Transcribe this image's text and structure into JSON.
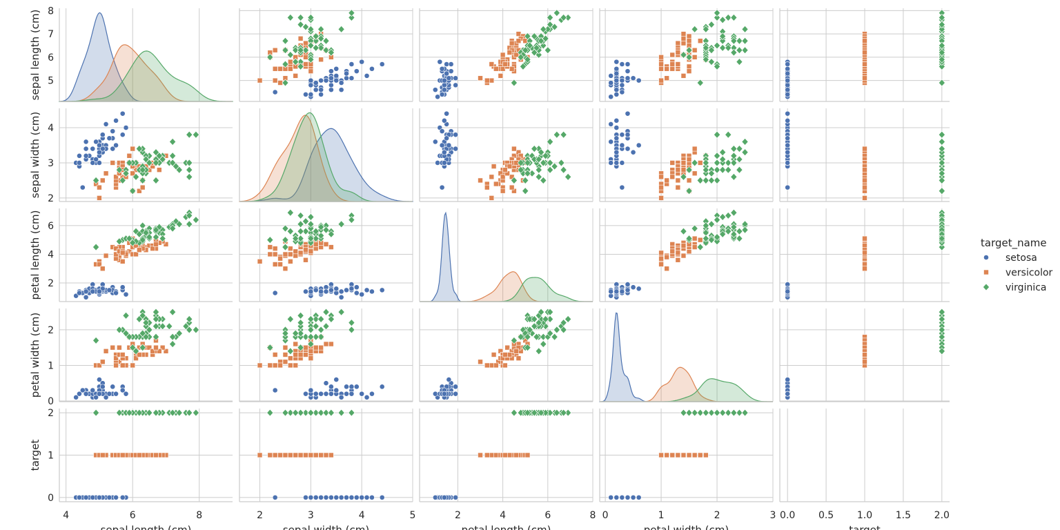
{
  "chart_data": {
    "type": "scatter",
    "title": "",
    "variables": [
      "sepal length (cm)",
      "sepal width (cm)",
      "petal length (cm)",
      "petal width (cm)",
      "target"
    ],
    "axes": {
      "sepal length (cm)": {
        "lim": [
          3.8,
          9.0
        ],
        "ticks": [
          4,
          6,
          8
        ],
        "tick_labels": [
          "4",
          "6",
          "8"
        ],
        "yticks": [
          5,
          6,
          7,
          8
        ],
        "ytick_labels": [
          "5",
          "6",
          "7",
          "8"
        ],
        "ylim": [
          4.1,
          8.1
        ]
      },
      "sepal width (cm)": {
        "lim": [
          1.6,
          5.0
        ],
        "ticks": [
          2,
          3,
          4,
          5
        ],
        "tick_labels": [
          "2",
          "3",
          "4",
          "5"
        ],
        "yticks": [
          2,
          3,
          4
        ],
        "ytick_labels": [
          "2",
          "3",
          "4"
        ],
        "ylim": [
          1.9,
          4.55
        ]
      },
      "petal length (cm)": {
        "lim": [
          0.3,
          8.0
        ],
        "ticks": [
          2,
          4,
          6,
          8
        ],
        "tick_labels": [
          "2",
          "4",
          "6",
          "8"
        ],
        "yticks": [
          2,
          4,
          6
        ],
        "ytick_labels": [
          "2",
          "4",
          "6"
        ],
        "ylim": [
          0.7,
          7.2
        ]
      },
      "petal width (cm)": {
        "lim": [
          -0.1,
          3.0
        ],
        "ticks": [
          0,
          1,
          2,
          3
        ],
        "tick_labels": [
          "0",
          "1",
          "2",
          "3"
        ],
        "yticks": [
          0,
          1,
          2
        ],
        "ytick_labels": [
          "0",
          "1",
          "2"
        ],
        "ylim": [
          -0.02,
          2.6
        ]
      },
      "target": {
        "lim": [
          -0.1,
          2.1
        ],
        "ticks": [
          0,
          0.5,
          1,
          1.5,
          2
        ],
        "tick_labels": [
          "0.0",
          "0.5",
          "1.0",
          "1.5",
          "2.0"
        ],
        "yticks": [
          0,
          1,
          2
        ],
        "ytick_labels": [
          "0",
          "1",
          "2"
        ],
        "ylim": [
          -0.1,
          2.1
        ]
      }
    },
    "legend": {
      "title": "target_name",
      "placement": "right",
      "entries": [
        {
          "label": "setosa",
          "marker": "circle"
        },
        {
          "label": "versicolor",
          "marker": "square"
        },
        {
          "label": "virginica",
          "marker": "diamond"
        }
      ]
    },
    "colors": {
      "setosa": "#4c72b0",
      "versicolor": "#dd8452",
      "virginica": "#55a868"
    },
    "series": [
      {
        "name": "setosa",
        "target": 0,
        "points": [
          [
            5.1,
            3.5,
            1.4,
            0.2
          ],
          [
            4.9,
            3.0,
            1.4,
            0.2
          ],
          [
            4.7,
            3.2,
            1.3,
            0.2
          ],
          [
            4.6,
            3.1,
            1.5,
            0.2
          ],
          [
            5.0,
            3.6,
            1.4,
            0.2
          ],
          [
            5.4,
            3.9,
            1.7,
            0.4
          ],
          [
            4.6,
            3.4,
            1.4,
            0.3
          ],
          [
            5.0,
            3.4,
            1.5,
            0.2
          ],
          [
            4.4,
            2.9,
            1.4,
            0.2
          ],
          [
            4.9,
            3.1,
            1.5,
            0.1
          ],
          [
            5.4,
            3.7,
            1.5,
            0.2
          ],
          [
            4.8,
            3.4,
            1.6,
            0.2
          ],
          [
            4.8,
            3.0,
            1.4,
            0.1
          ],
          [
            4.3,
            3.0,
            1.1,
            0.1
          ],
          [
            5.8,
            4.0,
            1.2,
            0.2
          ],
          [
            5.7,
            4.4,
            1.5,
            0.4
          ],
          [
            5.4,
            3.9,
            1.3,
            0.4
          ],
          [
            5.1,
            3.5,
            1.4,
            0.3
          ],
          [
            5.7,
            3.8,
            1.7,
            0.3
          ],
          [
            5.1,
            3.8,
            1.5,
            0.3
          ],
          [
            5.4,
            3.4,
            1.7,
            0.2
          ],
          [
            5.1,
            3.7,
            1.5,
            0.4
          ],
          [
            4.6,
            3.6,
            1.0,
            0.2
          ],
          [
            5.1,
            3.3,
            1.7,
            0.5
          ],
          [
            4.8,
            3.4,
            1.9,
            0.2
          ],
          [
            5.0,
            3.0,
            1.6,
            0.2
          ],
          [
            5.0,
            3.4,
            1.6,
            0.4
          ],
          [
            5.2,
            3.5,
            1.5,
            0.2
          ],
          [
            5.2,
            3.4,
            1.4,
            0.2
          ],
          [
            4.7,
            3.2,
            1.6,
            0.2
          ],
          [
            4.8,
            3.1,
            1.6,
            0.2
          ],
          [
            5.4,
            3.4,
            1.5,
            0.4
          ],
          [
            5.2,
            4.1,
            1.5,
            0.1
          ],
          [
            5.5,
            4.2,
            1.4,
            0.2
          ],
          [
            4.9,
            3.1,
            1.5,
            0.2
          ],
          [
            5.0,
            3.2,
            1.2,
            0.2
          ],
          [
            5.5,
            3.5,
            1.3,
            0.2
          ],
          [
            4.9,
            3.6,
            1.4,
            0.1
          ],
          [
            4.4,
            3.0,
            1.3,
            0.2
          ],
          [
            5.1,
            3.4,
            1.5,
            0.2
          ],
          [
            5.0,
            3.5,
            1.3,
            0.3
          ],
          [
            4.5,
            2.3,
            1.3,
            0.3
          ],
          [
            4.4,
            3.2,
            1.3,
            0.2
          ],
          [
            5.0,
            3.5,
            1.6,
            0.6
          ],
          [
            5.1,
            3.8,
            1.9,
            0.4
          ],
          [
            4.8,
            3.0,
            1.4,
            0.3
          ],
          [
            5.1,
            3.8,
            1.6,
            0.2
          ],
          [
            4.6,
            3.2,
            1.4,
            0.2
          ],
          [
            5.3,
            3.7,
            1.5,
            0.2
          ],
          [
            5.0,
            3.3,
            1.4,
            0.2
          ]
        ]
      },
      {
        "name": "versicolor",
        "target": 1,
        "points": [
          [
            7.0,
            3.2,
            4.7,
            1.4
          ],
          [
            6.4,
            3.2,
            4.5,
            1.5
          ],
          [
            6.9,
            3.1,
            4.9,
            1.5
          ],
          [
            5.5,
            2.3,
            4.0,
            1.3
          ],
          [
            6.5,
            2.8,
            4.6,
            1.5
          ],
          [
            5.7,
            2.8,
            4.5,
            1.3
          ],
          [
            6.3,
            3.3,
            4.7,
            1.6
          ],
          [
            4.9,
            2.4,
            3.3,
            1.0
          ],
          [
            6.6,
            2.9,
            4.6,
            1.3
          ],
          [
            5.2,
            2.7,
            3.9,
            1.4
          ],
          [
            5.0,
            2.0,
            3.5,
            1.0
          ],
          [
            5.9,
            3.0,
            4.2,
            1.5
          ],
          [
            6.0,
            2.2,
            4.0,
            1.0
          ],
          [
            6.1,
            2.9,
            4.7,
            1.4
          ],
          [
            5.6,
            2.9,
            3.6,
            1.3
          ],
          [
            6.7,
            3.1,
            4.4,
            1.4
          ],
          [
            5.6,
            3.0,
            4.5,
            1.5
          ],
          [
            5.8,
            2.7,
            4.1,
            1.0
          ],
          [
            6.2,
            2.2,
            4.5,
            1.5
          ],
          [
            5.6,
            2.5,
            3.9,
            1.1
          ],
          [
            5.9,
            3.2,
            4.8,
            1.8
          ],
          [
            6.1,
            2.8,
            4.0,
            1.3
          ],
          [
            6.3,
            2.5,
            4.9,
            1.5
          ],
          [
            6.1,
            2.8,
            4.7,
            1.2
          ],
          [
            6.4,
            2.9,
            4.3,
            1.3
          ],
          [
            6.6,
            3.0,
            4.4,
            1.4
          ],
          [
            6.8,
            2.8,
            4.8,
            1.4
          ],
          [
            6.7,
            3.0,
            5.0,
            1.7
          ],
          [
            6.0,
            2.9,
            4.5,
            1.5
          ],
          [
            5.7,
            2.6,
            3.5,
            1.0
          ],
          [
            5.5,
            2.4,
            3.8,
            1.1
          ],
          [
            5.5,
            2.4,
            3.7,
            1.0
          ],
          [
            5.8,
            2.7,
            3.9,
            1.2
          ],
          [
            6.0,
            2.7,
            5.1,
            1.6
          ],
          [
            5.4,
            3.0,
            4.5,
            1.5
          ],
          [
            6.0,
            3.4,
            4.5,
            1.6
          ],
          [
            6.7,
            3.1,
            4.7,
            1.5
          ],
          [
            6.3,
            2.3,
            4.4,
            1.3
          ],
          [
            5.6,
            3.0,
            4.1,
            1.3
          ],
          [
            5.5,
            2.5,
            4.0,
            1.3
          ],
          [
            5.5,
            2.6,
            4.4,
            1.2
          ],
          [
            6.1,
            3.0,
            4.6,
            1.4
          ],
          [
            5.8,
            2.6,
            4.0,
            1.2
          ],
          [
            5.0,
            2.3,
            3.3,
            1.0
          ],
          [
            5.6,
            2.7,
            4.2,
            1.3
          ],
          [
            5.7,
            3.0,
            4.2,
            1.2
          ],
          [
            5.7,
            2.9,
            4.2,
            1.3
          ],
          [
            6.2,
            2.9,
            4.3,
            1.3
          ],
          [
            5.1,
            2.5,
            3.0,
            1.1
          ],
          [
            5.7,
            2.8,
            4.1,
            1.3
          ]
        ]
      },
      {
        "name": "virginica",
        "target": 2,
        "points": [
          [
            6.3,
            3.3,
            6.0,
            2.5
          ],
          [
            5.8,
            2.7,
            5.1,
            1.9
          ],
          [
            7.1,
            3.0,
            5.9,
            2.1
          ],
          [
            6.3,
            2.9,
            5.6,
            1.8
          ],
          [
            6.5,
            3.0,
            5.8,
            2.2
          ],
          [
            7.6,
            3.0,
            6.6,
            2.1
          ],
          [
            4.9,
            2.5,
            4.5,
            1.7
          ],
          [
            7.3,
            2.9,
            6.3,
            1.8
          ],
          [
            6.7,
            2.5,
            5.8,
            1.8
          ],
          [
            7.2,
            3.6,
            6.1,
            2.5
          ],
          [
            6.5,
            3.2,
            5.1,
            2.0
          ],
          [
            6.4,
            2.7,
            5.3,
            1.9
          ],
          [
            6.8,
            3.0,
            5.5,
            2.1
          ],
          [
            5.7,
            2.5,
            5.0,
            2.0
          ],
          [
            5.8,
            2.8,
            5.1,
            2.4
          ],
          [
            6.4,
            3.2,
            5.3,
            2.3
          ],
          [
            6.5,
            3.0,
            5.5,
            1.8
          ],
          [
            7.7,
            3.8,
            6.7,
            2.2
          ],
          [
            7.7,
            2.6,
            6.9,
            2.3
          ],
          [
            6.0,
            2.2,
            5.0,
            1.5
          ],
          [
            6.9,
            3.2,
            5.7,
            2.3
          ],
          [
            5.6,
            2.8,
            4.9,
            2.0
          ],
          [
            7.7,
            2.8,
            6.7,
            2.0
          ],
          [
            6.3,
            2.7,
            4.9,
            1.8
          ],
          [
            6.7,
            3.3,
            5.7,
            2.1
          ],
          [
            7.2,
            3.2,
            6.0,
            1.8
          ],
          [
            6.2,
            2.8,
            4.8,
            1.8
          ],
          [
            6.1,
            3.0,
            4.9,
            1.8
          ],
          [
            6.4,
            2.8,
            5.6,
            2.1
          ],
          [
            7.2,
            3.0,
            5.8,
            1.6
          ],
          [
            7.4,
            2.8,
            6.1,
            1.9
          ],
          [
            7.9,
            3.8,
            6.4,
            2.0
          ],
          [
            6.4,
            2.8,
            5.6,
            2.2
          ],
          [
            6.3,
            2.8,
            5.1,
            1.5
          ],
          [
            6.1,
            2.6,
            5.6,
            1.4
          ],
          [
            7.7,
            3.0,
            6.1,
            2.3
          ],
          [
            6.3,
            3.4,
            5.6,
            2.4
          ],
          [
            6.4,
            3.1,
            5.5,
            1.8
          ],
          [
            6.0,
            3.0,
            4.8,
            1.8
          ],
          [
            6.9,
            3.1,
            5.4,
            2.1
          ],
          [
            6.7,
            3.1,
            5.6,
            2.4
          ],
          [
            6.9,
            3.1,
            5.1,
            2.3
          ],
          [
            5.8,
            2.7,
            5.1,
            1.9
          ],
          [
            6.8,
            3.2,
            5.9,
            2.3
          ],
          [
            6.7,
            3.3,
            5.7,
            2.5
          ],
          [
            6.7,
            3.0,
            5.2,
            2.3
          ],
          [
            6.3,
            2.5,
            5.0,
            1.9
          ],
          [
            6.5,
            3.0,
            5.2,
            2.0
          ],
          [
            6.2,
            3.4,
            5.4,
            2.3
          ],
          [
            5.9,
            3.0,
            5.1,
            1.8
          ]
        ]
      }
    ]
  }
}
